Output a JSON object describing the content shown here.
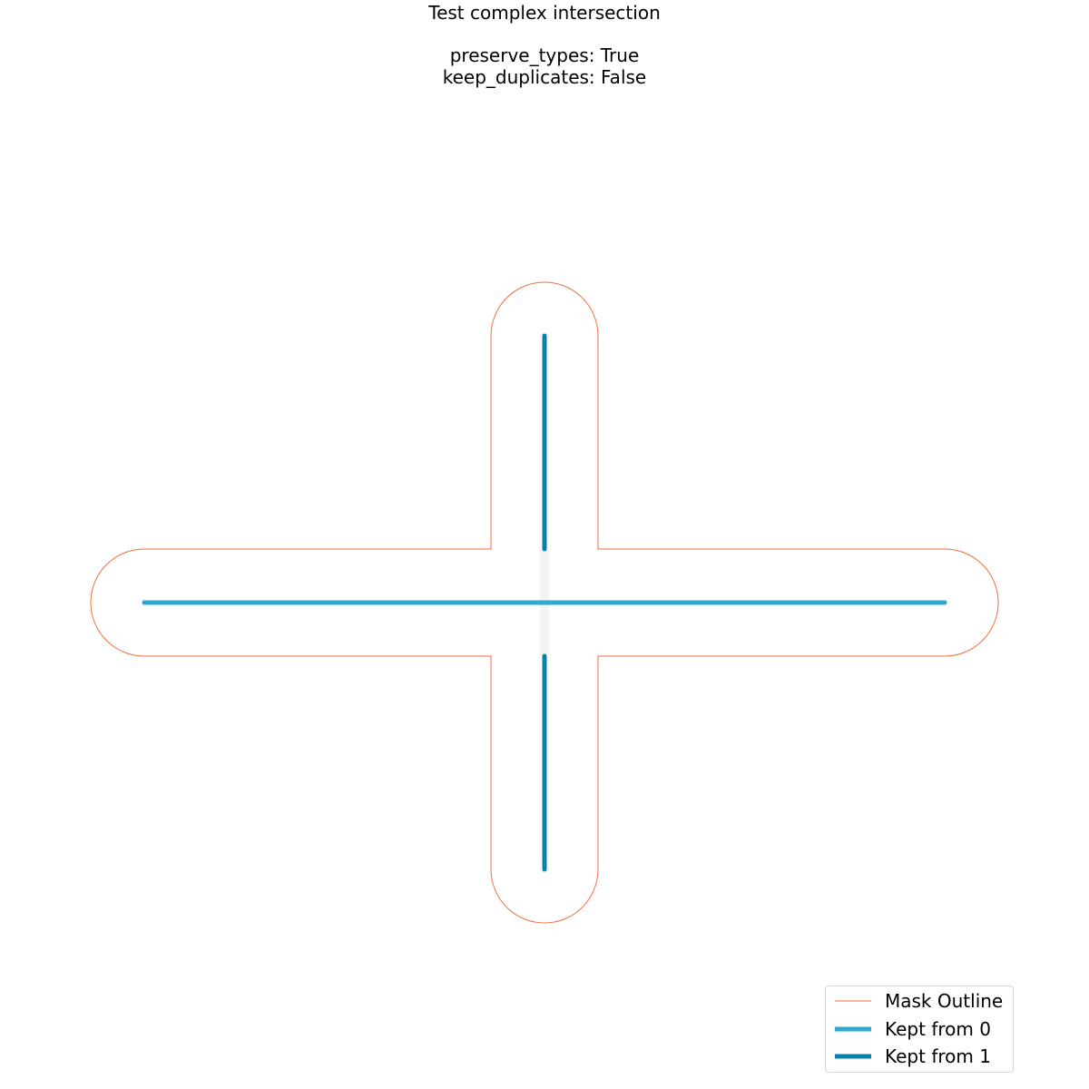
{
  "title": {
    "line1": "Test complex intersection",
    "line2": "preserve_types: True",
    "line3": "keep_duplicates: False"
  },
  "diagram": {
    "mask_outline_color": "#f07040",
    "kept_from_0_color": "#2ea8d0",
    "kept_from_1_color": "#0a80ac",
    "mask_fill_color": "#f2f2f2"
  },
  "legend": {
    "items": [
      {
        "label": "Mask Outline",
        "color": "#f07040"
      },
      {
        "label": "Kept from 0",
        "color": "#2ea8d0"
      },
      {
        "label": "Kept from 1",
        "color": "#0a80ac"
      }
    ]
  }
}
